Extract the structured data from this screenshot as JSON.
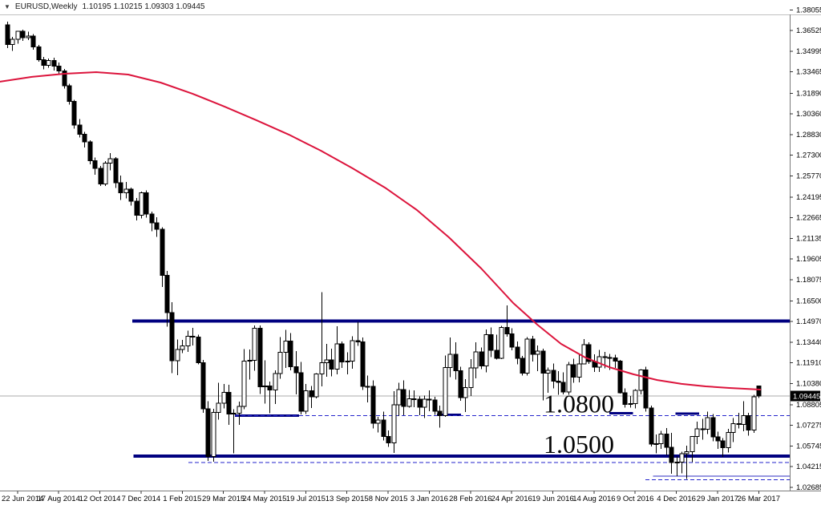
{
  "header": {
    "symbol_period": "EURUSD,Weekly",
    "ohlc_line": "1.10195 1.10215 1.09303 1.09445"
  },
  "colors": {
    "background": "#ffffff",
    "bull_body": "#ffffff",
    "bear_body": "#000000",
    "candle_outline": "#000000",
    "ma_line": "#dc143c",
    "navy_level": "#000080",
    "dashed_blue": "#2323cc",
    "light_blue": "#9797e0",
    "bid_line": "#ababab",
    "bid_badge_bg": "#000000",
    "bid_badge_text": "#ffffff",
    "frame": "#c0c0c0",
    "axis_line": "#7a7a7a",
    "axis_text": "#000000",
    "annotation_text": "#050505"
  },
  "chart_data": {
    "type": "candlestick",
    "title": "EURUSD Weekly",
    "symbol": "EURUSD",
    "timeframe": "Weekly",
    "last_quote": {
      "open": 1.10195,
      "high": 1.10215,
      "low": 1.09303,
      "close": 1.09445
    },
    "current_price_label": "1.09445",
    "y_axis_labels": [
      "1.38055",
      "1.36525",
      "1.34995",
      "1.33465",
      "1.31890",
      "1.30360",
      "1.28830",
      "1.27300",
      "1.25770",
      "1.24195",
      "1.22665",
      "1.21135",
      "1.19605",
      "1.18075",
      "1.16500",
      "1.14970",
      "1.13440",
      "1.11910",
      "1.10380",
      "1.08805",
      "1.07275",
      "1.05745",
      "1.04215",
      "1.02685"
    ],
    "x_axis_labels": [
      "22 Jun 2014",
      "17 Aug 2014",
      "12 Oct 2014",
      "7 Dec 2014",
      "1 Feb 2015",
      "29 Mar 2015",
      "24 May 2015",
      "19 Jul 2015",
      "13 Sep 2015",
      "8 Nov 2015",
      "3 Jan 2016",
      "28 Feb 2016",
      "24 Apr 2016",
      "19 Jun 2016",
      "14 Aug 2016",
      "9 Oct 2016",
      "4 Dec 2016",
      "29 Jan 2017",
      "26 Mar 2017"
    ],
    "weeks_per_label": 8,
    "first_label_candle_index": 2,
    "candles": [
      [
        1.3697,
        1.372,
        1.3524,
        1.3551
      ],
      [
        1.3551,
        1.3605,
        1.3503,
        1.359
      ],
      [
        1.359,
        1.3651,
        1.3556,
        1.3647
      ],
      [
        1.3647,
        1.3661,
        1.3576,
        1.3601
      ],
      [
        1.3601,
        1.3645,
        1.3583,
        1.3612
      ],
      [
        1.3612,
        1.3628,
        1.351,
        1.3531
      ],
      [
        1.3531,
        1.3548,
        1.3421,
        1.3438
      ],
      [
        1.3438,
        1.3457,
        1.3366,
        1.3396
      ],
      [
        1.3396,
        1.3445,
        1.3378,
        1.3432
      ],
      [
        1.3432,
        1.3451,
        1.3358,
        1.339
      ],
      [
        1.339,
        1.3416,
        1.3333,
        1.3355
      ],
      [
        1.3355,
        1.3368,
        1.3222,
        1.3245
      ],
      [
        1.3245,
        1.3259,
        1.3105,
        1.3128
      ],
      [
        1.3128,
        1.3141,
        1.2926,
        1.2952
      ],
      [
        1.2952,
        1.2996,
        1.286,
        1.2885
      ],
      [
        1.2885,
        1.2902,
        1.2786,
        1.2828
      ],
      [
        1.2828,
        1.2841,
        1.2662,
        1.2688
      ],
      [
        1.2688,
        1.2712,
        1.2583,
        1.2632
      ],
      [
        1.2632,
        1.2649,
        1.2501,
        1.2517
      ],
      [
        1.2517,
        1.2686,
        1.25,
        1.267
      ],
      [
        1.267,
        1.2744,
        1.2617,
        1.2702
      ],
      [
        1.2702,
        1.2716,
        1.2486,
        1.2524
      ],
      [
        1.2524,
        1.2578,
        1.2398,
        1.2452
      ],
      [
        1.2452,
        1.2532,
        1.241,
        1.2478
      ],
      [
        1.2478,
        1.2489,
        1.2357,
        1.2388
      ],
      [
        1.2388,
        1.2412,
        1.2247,
        1.2283
      ],
      [
        1.2283,
        1.2459,
        1.2262,
        1.2452
      ],
      [
        1.2452,
        1.2468,
        1.2266,
        1.2292
      ],
      [
        1.2292,
        1.2312,
        1.2165,
        1.2228
      ],
      [
        1.2228,
        1.2269,
        1.2123,
        1.218
      ],
      [
        1.218,
        1.2194,
        1.1754,
        1.184
      ],
      [
        1.184,
        1.1871,
        1.1459,
        1.1562
      ],
      [
        1.1562,
        1.1639,
        1.1115,
        1.1205
      ],
      [
        1.1205,
        1.1364,
        1.1098,
        1.1288
      ],
      [
        1.1288,
        1.1359,
        1.1262,
        1.1315
      ],
      [
        1.1315,
        1.1429,
        1.127,
        1.1388
      ],
      [
        1.1388,
        1.145,
        1.132,
        1.1382
      ],
      [
        1.1382,
        1.1399,
        1.1178,
        1.1192
      ],
      [
        1.1192,
        1.1212,
        1.0821,
        1.0848
      ],
      [
        1.0848,
        1.0906,
        1.0462,
        1.0497
      ],
      [
        1.0497,
        1.085,
        1.0458,
        1.0822
      ],
      [
        1.0822,
        1.1043,
        1.0768,
        1.089
      ],
      [
        1.089,
        1.1035,
        1.0852,
        1.0972
      ],
      [
        1.0972,
        1.1028,
        1.073,
        1.0812
      ],
      [
        1.0812,
        1.0845,
        1.0519,
        1.0818
      ],
      [
        1.0818,
        1.0902,
        1.0731,
        1.0868
      ],
      [
        1.0868,
        1.1292,
        1.0846,
        1.1202
      ],
      [
        1.1202,
        1.129,
        1.1066,
        1.121
      ],
      [
        1.121,
        1.1467,
        1.1131,
        1.1448
      ],
      [
        1.1448,
        1.1466,
        1.096,
        1.1012
      ],
      [
        1.1012,
        1.1208,
        1.0887,
        1.1018
      ],
      [
        1.1018,
        1.1051,
        1.0818,
        1.0988
      ],
      [
        1.0988,
        1.1136,
        1.0886,
        1.1112
      ],
      [
        1.1112,
        1.138,
        1.1072,
        1.1268
      ],
      [
        1.1268,
        1.1436,
        1.1151,
        1.1352
      ],
      [
        1.1352,
        1.141,
        1.1135,
        1.1162
      ],
      [
        1.1162,
        1.1278,
        1.0955,
        1.1118
      ],
      [
        1.1118,
        1.1196,
        1.0808,
        1.0832
      ],
      [
        1.0832,
        1.1035,
        1.081,
        1.0982
      ],
      [
        1.0982,
        1.1018,
        1.0856,
        1.0938
      ],
      [
        1.0938,
        1.1115,
        1.0926,
        1.1108
      ],
      [
        1.1108,
        1.1714,
        1.1017,
        1.119
      ],
      [
        1.119,
        1.1332,
        1.1087,
        1.1212
      ],
      [
        1.1212,
        1.1296,
        1.1089,
        1.1145
      ],
      [
        1.1145,
        1.146,
        1.1105,
        1.1332
      ],
      [
        1.1332,
        1.1348,
        1.1151,
        1.1196
      ],
      [
        1.1196,
        1.1268,
        1.1105,
        1.1203
      ],
      [
        1.1203,
        1.1387,
        1.1148,
        1.1355
      ],
      [
        1.1355,
        1.1495,
        1.1315,
        1.1347
      ],
      [
        1.1347,
        1.1378,
        1.0989,
        1.1017
      ],
      [
        1.1017,
        1.1095,
        1.0896,
        1.1015
      ],
      [
        1.1015,
        1.106,
        1.0705,
        1.0741
      ],
      [
        1.0741,
        1.079,
        1.0674,
        1.0766
      ],
      [
        1.0766,
        1.083,
        1.0616,
        1.0645
      ],
      [
        1.0645,
        1.0689,
        1.0566,
        1.0598
      ],
      [
        1.0598,
        1.0981,
        1.0524,
        1.088
      ],
      [
        1.088,
        1.1043,
        1.0796,
        1.0991
      ],
      [
        1.0991,
        1.106,
        1.0802,
        1.0867
      ],
      [
        1.0867,
        1.099,
        1.0858,
        1.0925
      ],
      [
        1.0925,
        1.0987,
        1.0861,
        1.0922
      ],
      [
        1.0922,
        1.0943,
        1.0802,
        1.0862
      ],
      [
        1.0862,
        1.0946,
        1.078,
        1.092
      ],
      [
        1.092,
        1.0985,
        1.0833,
        1.0916
      ],
      [
        1.0916,
        1.094,
        1.0805,
        1.0832
      ],
      [
        1.0832,
        1.0874,
        1.071,
        1.0799
      ],
      [
        1.0799,
        1.1246,
        1.0791,
        1.1156
      ],
      [
        1.1156,
        1.1377,
        1.1085,
        1.1254
      ],
      [
        1.1254,
        1.1342,
        1.1066,
        1.1131
      ],
      [
        1.1131,
        1.116,
        1.091,
        1.0932
      ],
      [
        1.0932,
        1.1068,
        1.0825,
        1.1007
      ],
      [
        1.1007,
        1.1218,
        1.0945,
        1.1151
      ],
      [
        1.1151,
        1.1342,
        1.1076,
        1.127
      ],
      [
        1.127,
        1.1304,
        1.1144,
        1.1166
      ],
      [
        1.1166,
        1.1438,
        1.112,
        1.1398
      ],
      [
        1.1398,
        1.1454,
        1.1232,
        1.1283
      ],
      [
        1.1283,
        1.1398,
        1.1216,
        1.1225
      ],
      [
        1.1225,
        1.1465,
        1.1217,
        1.1453
      ],
      [
        1.1453,
        1.1616,
        1.1385,
        1.1405
      ],
      [
        1.1405,
        1.1447,
        1.1283,
        1.1308
      ],
      [
        1.1308,
        1.1349,
        1.118,
        1.1223
      ],
      [
        1.1223,
        1.1243,
        1.1097,
        1.1113
      ],
      [
        1.1113,
        1.1382,
        1.1095,
        1.1367
      ],
      [
        1.1367,
        1.139,
        1.1201,
        1.1254
      ],
      [
        1.1254,
        1.1319,
        1.113,
        1.1277
      ],
      [
        1.1277,
        1.1296,
        1.0912,
        1.1115
      ],
      [
        1.1115,
        1.1155,
        1.0968,
        1.1136
      ],
      [
        1.1136,
        1.1186,
        1.1002,
        1.1053
      ],
      [
        1.1053,
        1.1128,
        1.0952,
        1.1046
      ],
      [
        1.1046,
        1.112,
        1.0955,
        1.0975
      ],
      [
        1.0975,
        1.1198,
        1.0953,
        1.1175
      ],
      [
        1.1175,
        1.1222,
        1.1044,
        1.1085
      ],
      [
        1.1085,
        1.1252,
        1.1046,
        1.1183
      ],
      [
        1.1183,
        1.1366,
        1.118,
        1.1326
      ],
      [
        1.1326,
        1.1342,
        1.1183,
        1.12
      ],
      [
        1.12,
        1.1253,
        1.1122,
        1.1157
      ],
      [
        1.1157,
        1.1285,
        1.1123,
        1.1235
      ],
      [
        1.1235,
        1.1272,
        1.1149,
        1.123
      ],
      [
        1.123,
        1.1257,
        1.1138,
        1.1226
      ],
      [
        1.1226,
        1.125,
        1.1153,
        1.1203
      ],
      [
        1.1203,
        1.1212,
        1.0962,
        1.0968
      ],
      [
        1.0968,
        1.1,
        1.0859,
        1.0883
      ],
      [
        1.0883,
        1.0945,
        1.0857,
        1.0887
      ],
      [
        1.0887,
        1.0994,
        1.0853,
        1.0985
      ],
      [
        1.0985,
        1.1143,
        1.0957,
        1.1139
      ],
      [
        1.1139,
        1.116,
        1.0829,
        1.0855
      ],
      [
        1.0855,
        1.0873,
        1.0569,
        1.0588
      ],
      [
        1.0588,
        1.0658,
        1.052,
        1.059
      ],
      [
        1.059,
        1.0687,
        1.0551,
        1.0663
      ],
      [
        1.0663,
        1.0707,
        1.0504,
        1.0563
      ],
      [
        1.0563,
        1.067,
        1.0367,
        1.0452
      ],
      [
        1.0452,
        1.05,
        1.035,
        1.0454
      ],
      [
        1.0454,
        1.0531,
        1.0372,
        1.0518
      ],
      [
        1.0518,
        1.0575,
        1.033,
        1.0532
      ],
      [
        1.0532,
        1.063,
        1.0453,
        1.0644
      ],
      [
        1.0644,
        1.0755,
        1.0589,
        1.0701
      ],
      [
        1.0701,
        1.0775,
        1.062,
        1.0697
      ],
      [
        1.0697,
        1.0829,
        1.0662,
        1.0783
      ],
      [
        1.0783,
        1.0811,
        1.0608,
        1.0641
      ],
      [
        1.0641,
        1.0679,
        1.0551,
        1.0611
      ],
      [
        1.0611,
        1.0632,
        1.0494,
        1.0561
      ],
      [
        1.0561,
        1.07,
        1.0525,
        1.0675
      ],
      [
        1.0675,
        1.0782,
        1.0604,
        1.0739
      ],
      [
        1.0739,
        1.082,
        1.0705,
        1.0735
      ],
      [
        1.0735,
        1.0906,
        1.0682,
        1.0799
      ],
      [
        1.0799,
        1.082,
        1.0651,
        1.0691
      ],
      [
        1.0691,
        1.0952,
        1.0671,
        1.094
      ],
      [
        1.10195,
        1.10215,
        1.09303,
        1.09445
      ]
    ],
    "moving_average": {
      "name": "long-term moving average",
      "points": [
        [
          -1.4,
          1.3274
        ],
        [
          4.8,
          1.331
        ],
        [
          11.1,
          1.3333
        ],
        [
          17.3,
          1.3345
        ],
        [
          23.5,
          1.3327
        ],
        [
          29.8,
          1.3268
        ],
        [
          36.0,
          1.3185
        ],
        [
          42.2,
          1.309
        ],
        [
          48.4,
          1.2989
        ],
        [
          54.7,
          1.2882
        ],
        [
          60.9,
          1.2763
        ],
        [
          67.1,
          1.2632
        ],
        [
          73.4,
          1.2489
        ],
        [
          79.6,
          1.2323
        ],
        [
          85.8,
          1.2121
        ],
        [
          92.1,
          1.1889
        ],
        [
          98.3,
          1.1634
        ],
        [
          103.0,
          1.1473
        ],
        [
          107.6,
          1.1331
        ],
        [
          112.3,
          1.123
        ],
        [
          117.0,
          1.1158
        ],
        [
          121.7,
          1.1105
        ],
        [
          126.3,
          1.1063
        ],
        [
          131.0,
          1.1034
        ],
        [
          135.7,
          1.1016
        ],
        [
          140.3,
          1.1004
        ],
        [
          146.3,
          1.0992
        ]
      ]
    },
    "levels": [
      {
        "style": "thick",
        "value": 1.15,
        "from": 24.3,
        "to": 152
      },
      {
        "style": "thick",
        "value": 1.05,
        "from": 24.5,
        "to": 152
      },
      {
        "style": "segment",
        "value": 1.08,
        "from": 44.2,
        "to": 56.7
      },
      {
        "style": "segment",
        "value": 1.0805,
        "from": 83.5,
        "to": 88.2
      },
      {
        "style": "segment",
        "value": 1.0817,
        "from": 117.0,
        "to": 121.6
      },
      {
        "style": "segment",
        "value": 1.0815,
        "from": 129.8,
        "to": 134.4
      },
      {
        "style": "dashed",
        "value": 1.08,
        "from": 44.2,
        "to": 152
      },
      {
        "style": "dashed",
        "value": 1.045,
        "from": 35.2,
        "to": 152
      },
      {
        "style": "dashed",
        "value": 1.0325,
        "from": 124.0,
        "to": 152
      },
      {
        "style": "light",
        "value": 1.035,
        "from": 125.5,
        "to": 152
      }
    ],
    "annotations": [
      {
        "text": "1.0800",
        "x_index": 104.2,
        "value": 1.08
      },
      {
        "text": "1.0500",
        "x_index": 104.2,
        "value": 1.05
      }
    ],
    "ylim": [
      1.02685,
      1.38055
    ],
    "grid": false,
    "legend": null
  }
}
